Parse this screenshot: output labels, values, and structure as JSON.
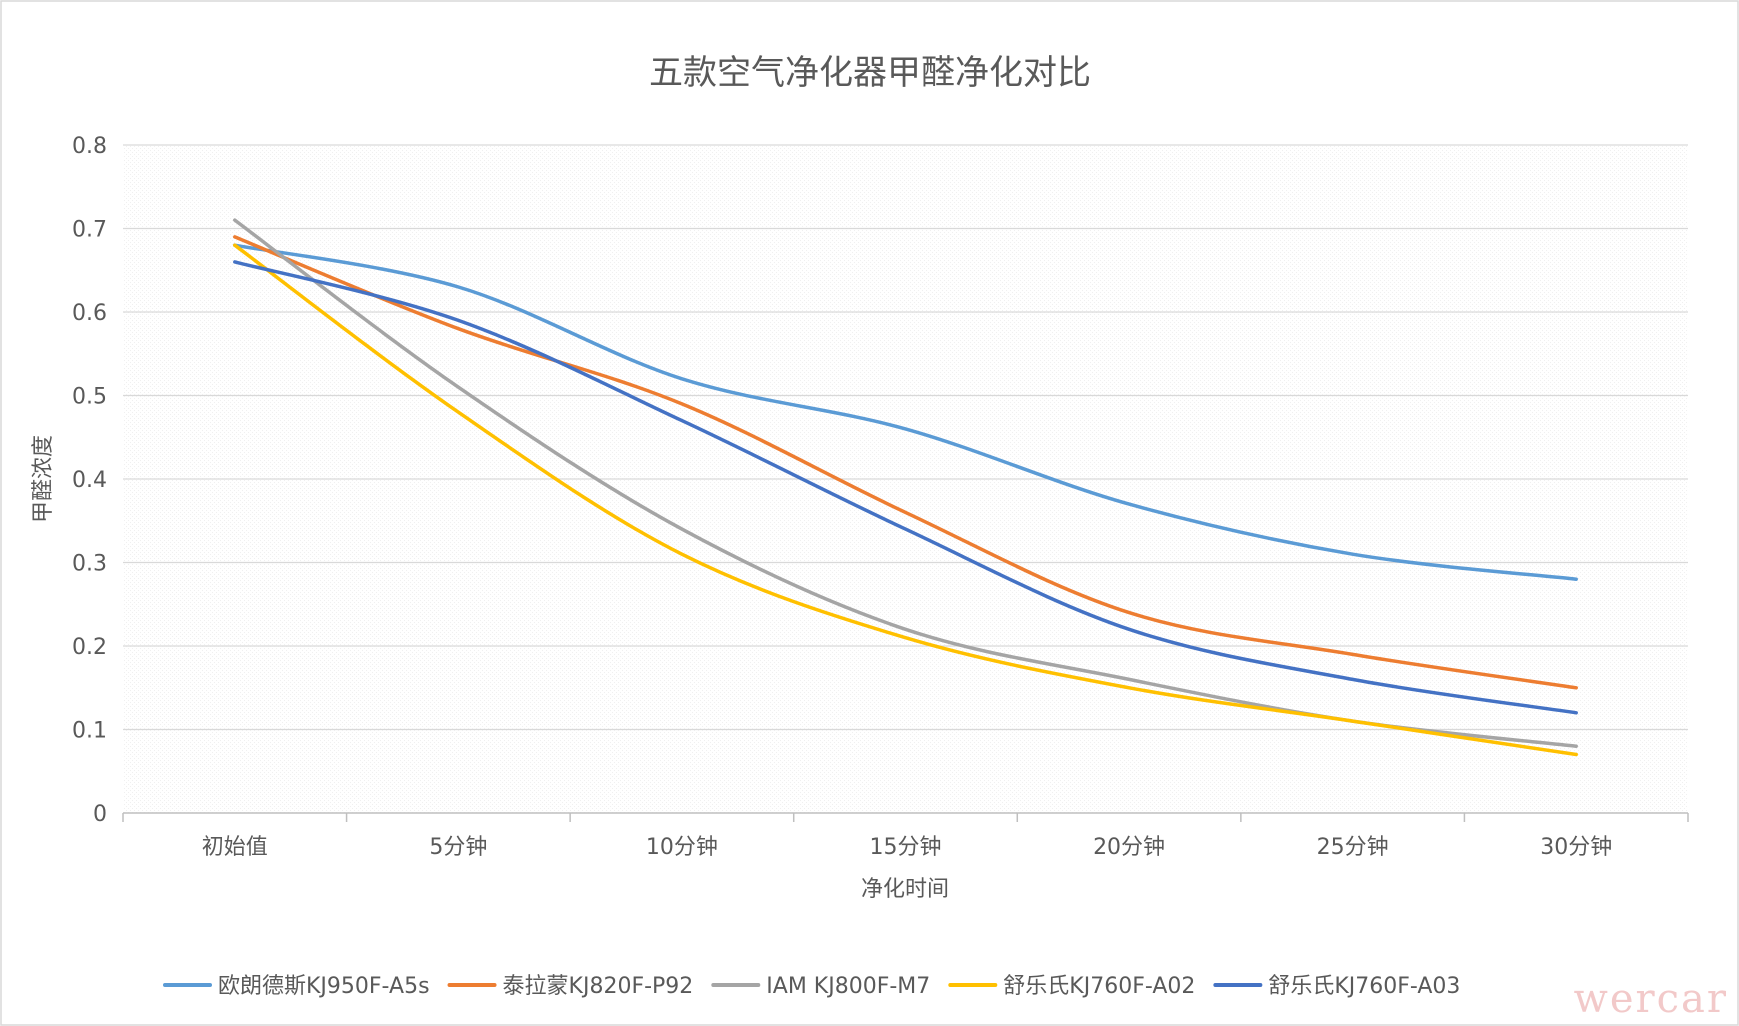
{
  "chart_data": {
    "type": "line",
    "title": "五款空气净化器甲醛净化对比",
    "xlabel": "净化时间",
    "ylabel": "甲醛浓度",
    "categories": [
      "初始值",
      "5分钟",
      "10分钟",
      "15分钟",
      "20分钟",
      "25分钟",
      "30分钟"
    ],
    "ylim": [
      0,
      0.8
    ],
    "yticks": [
      "0",
      "0.1",
      "0.2",
      "0.3",
      "0.4",
      "0.5",
      "0.6",
      "0.7",
      "0.8"
    ],
    "grid": true,
    "legend_position": "bottom",
    "series": [
      {
        "name": "欧朗德斯KJ950F-A5s",
        "color": "#5b9bd5",
        "values": [
          0.68,
          0.63,
          0.52,
          0.46,
          0.37,
          0.31,
          0.28
        ]
      },
      {
        "name": "泰拉蒙KJ820F-P92",
        "color": "#ed7d31",
        "values": [
          0.69,
          0.58,
          0.49,
          0.36,
          0.24,
          0.19,
          0.15
        ]
      },
      {
        "name": "IAM KJ800F-M7",
        "color": "#a5a5a5",
        "values": [
          0.71,
          0.51,
          0.34,
          0.22,
          0.16,
          0.11,
          0.08
        ]
      },
      {
        "name": "舒乐氏KJ760F-A02",
        "color": "#ffc000",
        "values": [
          0.68,
          0.48,
          0.31,
          0.21,
          0.15,
          0.11,
          0.07
        ]
      },
      {
        "name": "舒乐氏KJ760F-A03",
        "color": "#4472c4",
        "values": [
          0.66,
          0.59,
          0.47,
          0.34,
          0.22,
          0.16,
          0.12
        ]
      }
    ]
  },
  "watermark": "wercar"
}
